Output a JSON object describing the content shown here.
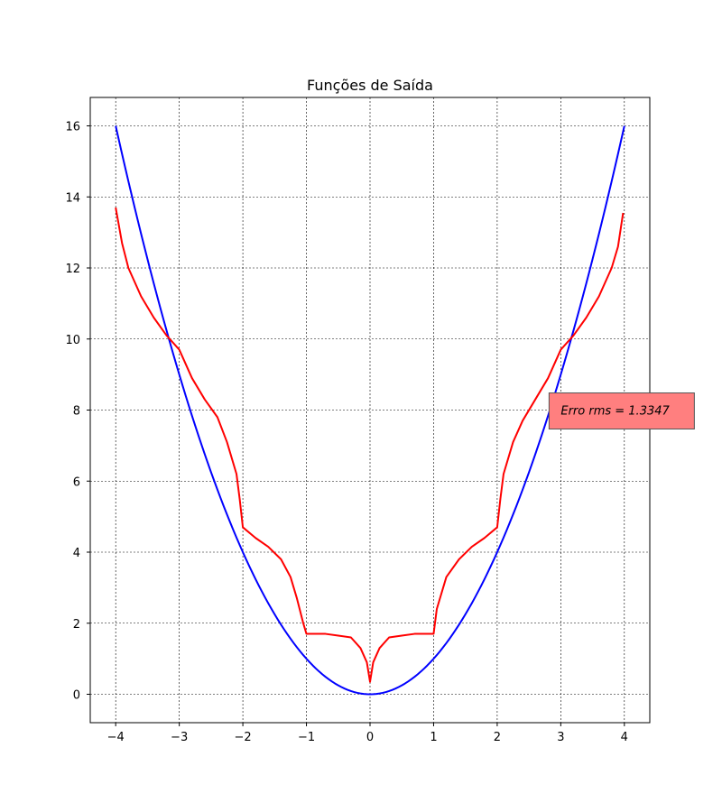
{
  "chart_data": {
    "type": "line",
    "title": "Funções de Saída",
    "xlabel": "",
    "ylabel": "",
    "xlim": [
      -4.4,
      4.4
    ],
    "ylim": [
      -0.8,
      16.8
    ],
    "xticks": [
      -4,
      -3,
      -2,
      -1,
      0,
      1,
      2,
      3,
      4
    ],
    "xtick_labels": [
      "−4",
      "−3",
      "−2",
      "−1",
      "0",
      "1",
      "2",
      "3",
      "4"
    ],
    "yticks": [
      0,
      2,
      4,
      6,
      8,
      10,
      12,
      14,
      16
    ],
    "ytick_labels": [
      "0",
      "2",
      "4",
      "6",
      "8",
      "10",
      "12",
      "14",
      "16"
    ],
    "grid": true,
    "grid_style": "dotted black",
    "series": [
      {
        "color": "#0000ff",
        "function": "x^2",
        "x_range": [
          -4,
          4
        ]
      },
      {
        "color": "#ff0000",
        "points": [
          [
            -4.0,
            13.7
          ],
          [
            -3.9,
            12.7
          ],
          [
            -3.8,
            12.0
          ],
          [
            -3.6,
            11.2
          ],
          [
            -3.4,
            10.6
          ],
          [
            -3.2,
            10.1
          ],
          [
            -3.0,
            9.7
          ],
          [
            -2.8,
            8.9
          ],
          [
            -2.6,
            8.3
          ],
          [
            -2.4,
            7.8
          ],
          [
            -2.25,
            7.1
          ],
          [
            -2.1,
            6.2
          ],
          [
            -2.05,
            5.5
          ],
          [
            -2.0,
            4.7
          ],
          [
            -1.8,
            4.4
          ],
          [
            -1.6,
            4.15
          ],
          [
            -1.4,
            3.8
          ],
          [
            -1.25,
            3.3
          ],
          [
            -1.15,
            2.7
          ],
          [
            -1.05,
            2.0
          ],
          [
            -1.0,
            1.7
          ],
          [
            -0.7,
            1.7
          ],
          [
            -0.5,
            1.65
          ],
          [
            -0.3,
            1.6
          ],
          [
            -0.15,
            1.3
          ],
          [
            -0.05,
            0.9
          ],
          [
            0.0,
            0.35
          ],
          [
            0.05,
            0.9
          ],
          [
            0.15,
            1.3
          ],
          [
            0.3,
            1.6
          ],
          [
            0.5,
            1.65
          ],
          [
            0.7,
            1.7
          ],
          [
            1.0,
            1.7
          ],
          [
            1.05,
            2.4
          ],
          [
            1.2,
            3.3
          ],
          [
            1.4,
            3.8
          ],
          [
            1.6,
            4.15
          ],
          [
            1.8,
            4.4
          ],
          [
            2.0,
            4.7
          ],
          [
            2.05,
            5.5
          ],
          [
            2.1,
            6.2
          ],
          [
            2.25,
            7.1
          ],
          [
            2.4,
            7.7
          ],
          [
            2.6,
            8.3
          ],
          [
            2.8,
            8.9
          ],
          [
            3.0,
            9.7
          ],
          [
            3.2,
            10.1
          ],
          [
            3.4,
            10.6
          ],
          [
            3.6,
            11.2
          ],
          [
            3.8,
            12.0
          ],
          [
            3.9,
            12.6
          ],
          [
            3.98,
            13.55
          ]
        ]
      }
    ],
    "annotation": {
      "text": "Erro rms =  1.3347",
      "box_color": "#ff7f7f",
      "x": 3.0,
      "y": 8.0
    }
  }
}
